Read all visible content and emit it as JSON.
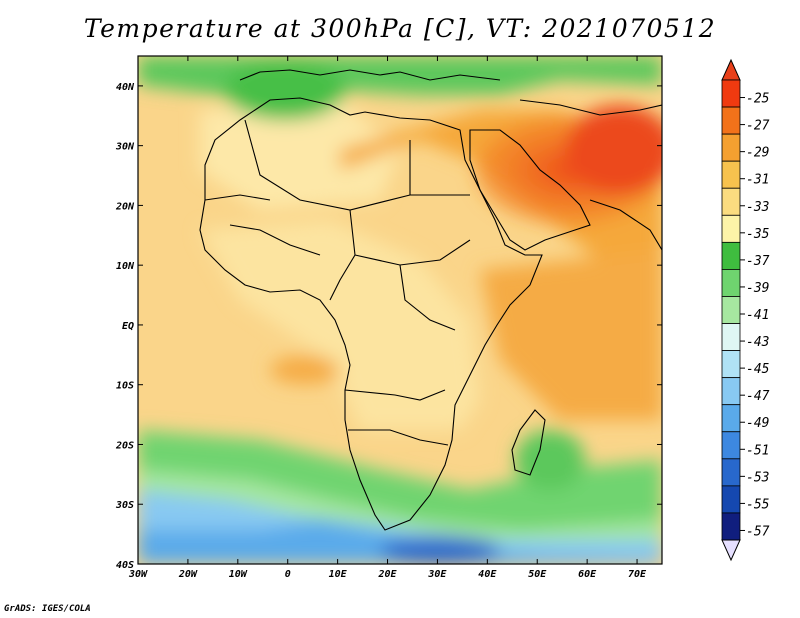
{
  "title": "Temperature at 300hPa [C], VT: 2021070512",
  "credit": "GrADS: IGES/COLA",
  "map": {
    "lon_range": [
      -30,
      75
    ],
    "lat_range": [
      -40,
      45
    ],
    "lon_labels": [
      "30W",
      "20W",
      "10W",
      "0",
      "10E",
      "20E",
      "30E",
      "40E",
      "50E",
      "60E",
      "70E"
    ],
    "lat_labels": [
      "40N",
      "30N",
      "20N",
      "10N",
      "EQ",
      "10S",
      "20S",
      "30S",
      "40S"
    ],
    "lon_ticks": [
      -30,
      -20,
      -10,
      0,
      10,
      20,
      30,
      40,
      50,
      60,
      70
    ],
    "lat_ticks": [
      40,
      30,
      20,
      10,
      0,
      -10,
      -20,
      -30,
      -40
    ]
  },
  "colorbar": {
    "labels": [
      "-25",
      "-27",
      "-29",
      "-31",
      "-33",
      "-35",
      "-37",
      "-39",
      "-41",
      "-43",
      "-45",
      "-47",
      "-49",
      "-51",
      "-53",
      "-55",
      "-57"
    ],
    "colors": [
      "#f03a10",
      "#f2721a",
      "#f5a030",
      "#f7c24e",
      "#fbdc80",
      "#fdf3a8",
      "#3fbd3f",
      "#6fd46f",
      "#a6e7a0",
      "#dff7f4",
      "#b0e2f5",
      "#88c9f2",
      "#5aaaea",
      "#3d88e0",
      "#2868cc",
      "#1548b0",
      "#101e7e"
    ],
    "over_color": "#e8401a",
    "under_color": "#e6e0ff"
  }
}
